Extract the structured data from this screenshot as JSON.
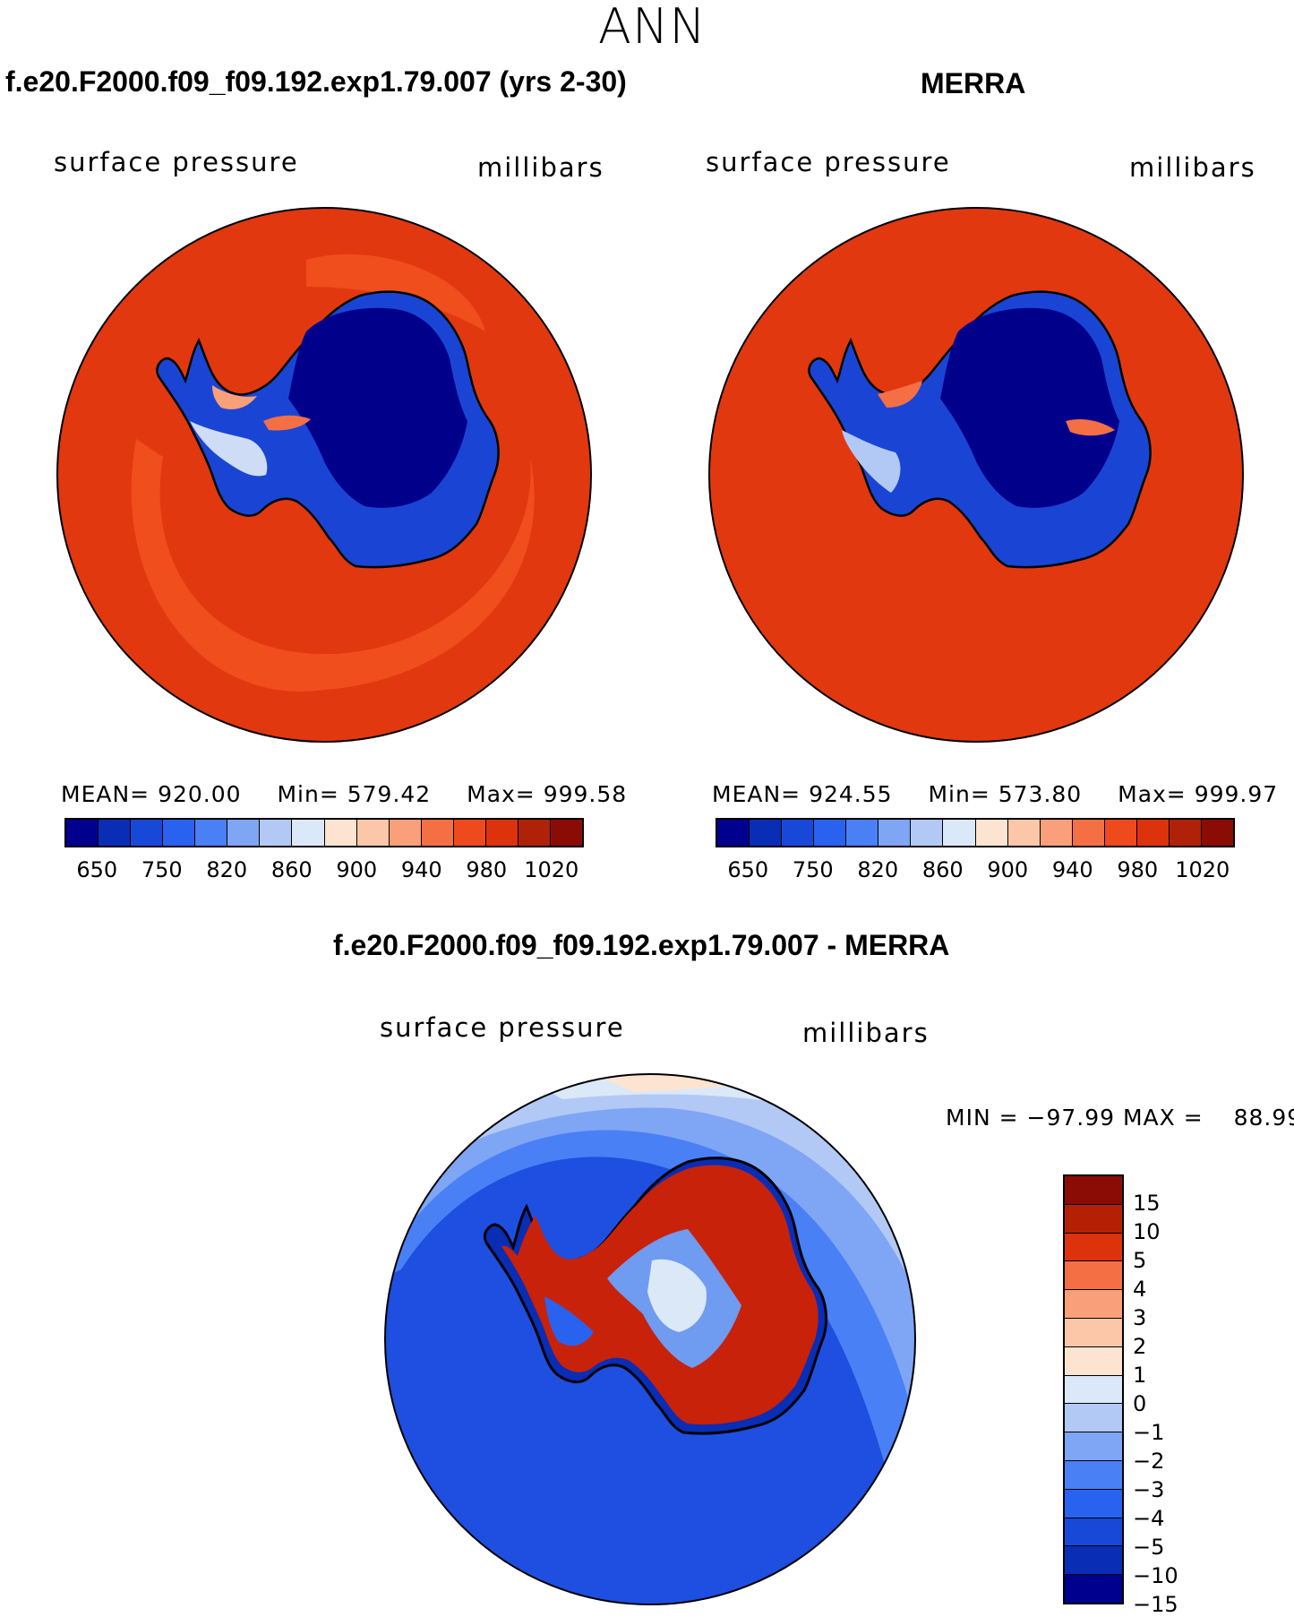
{
  "figure": {
    "title": "ANN"
  },
  "panels": [
    {
      "title": "f.e20.F2000.f09_f09.192.exp1.79.007 (yrs 2-30)",
      "variable": "surface pressure",
      "units": "millibars",
      "stats": {
        "mean_label": "MEAN=",
        "mean": "920.00",
        "min_label": "Min=",
        "min": "579.42",
        "max_label": "Max=",
        "max": "999.58"
      }
    },
    {
      "title": "MERRA",
      "variable": "surface pressure",
      "units": "millibars",
      "stats": {
        "mean_label": "MEAN=",
        "mean": "924.55",
        "min_label": "Min=",
        "min": "573.80",
        "max_label": "Max=",
        "max": "999.97"
      }
    },
    {
      "title": "f.e20.F2000.f09_f09.192.exp1.79.007 - MERRA",
      "variable": "surface pressure",
      "units": "millibars",
      "stats": {
        "min_label": "MIN =",
        "min": "−97.99",
        "max_label": "MAX =",
        "max": "88.99"
      }
    }
  ],
  "colorbar_abs": {
    "colors": [
      "#00008e",
      "#0a2db5",
      "#1848d8",
      "#2a62f0",
      "#4a80f5",
      "#7fa5f5",
      "#b2c9f5",
      "#dbe8f8",
      "#fde4d0",
      "#fcc7a8",
      "#f9a07a",
      "#f56f45",
      "#ee4a1d",
      "#dc330d",
      "#b02208",
      "#8a0c05"
    ],
    "ticks": [
      "650",
      "750",
      "820",
      "860",
      "900",
      "940",
      "980",
      "1020"
    ]
  },
  "colorbar_diff": {
    "colors": [
      "#8a0c05",
      "#b52005",
      "#dc330d",
      "#f56f45",
      "#f9a07a",
      "#fcc7a8",
      "#fde4d0",
      "#dbe8f8",
      "#b2c9f5",
      "#7fa5f5",
      "#4a80f5",
      "#2a62f0",
      "#1848d8",
      "#0a2db5",
      "#00008e"
    ],
    "ticks": [
      "15",
      "10",
      "5",
      "4",
      "3",
      "2",
      "1",
      "0",
      "−1",
      "−2",
      "−3",
      "−4",
      "−5",
      "−10",
      "−15"
    ]
  },
  "map_colors": {
    "ocean_abs": "#e2380f",
    "ocean_abs_light": "#f04e1c",
    "ice_deep": "#00008b",
    "ice_mid": "#1a45d4",
    "ice_light": "#6f9bf0",
    "coast": "#000000",
    "diff_ocean": "#1e4fe0",
    "diff_ocean_light": "#6f9bf0",
    "diff_red": "#c8220a"
  }
}
